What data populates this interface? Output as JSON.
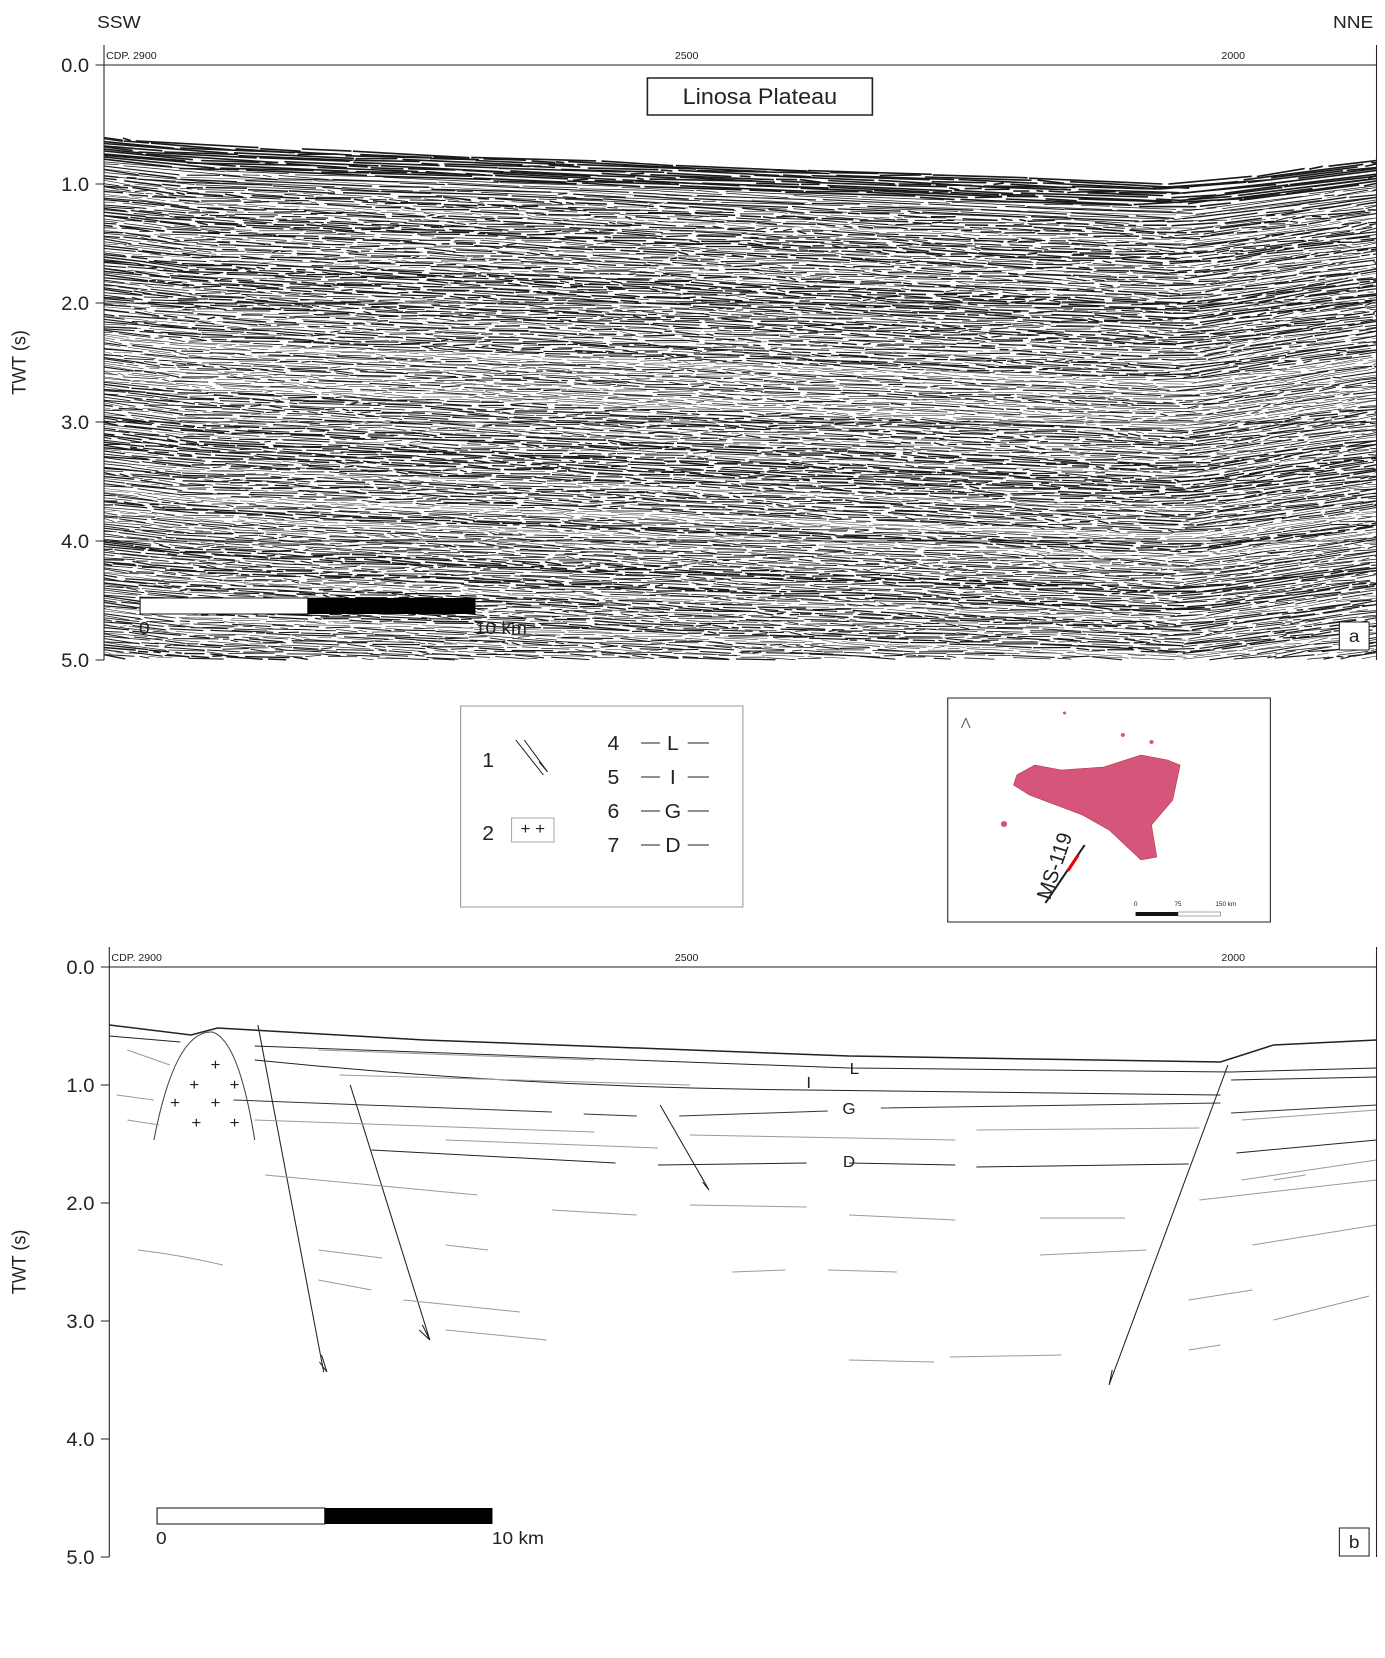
{
  "direction": {
    "left": "SSW",
    "right": "NNE"
  },
  "panels": [
    {
      "label": "a",
      "title": "Linosa Plateau",
      "axis_label": "TWT (s)",
      "cdp": [
        "CDP. 2900",
        "2500",
        "2000"
      ],
      "yticks": [
        {
          "value": 0,
          "label": "0.0"
        },
        {
          "value": 1,
          "label": "1.0"
        },
        {
          "value": 2,
          "label": "2.0"
        },
        {
          "value": 3,
          "label": "3.0"
        },
        {
          "value": 4,
          "label": "4.0"
        },
        {
          "value": 5,
          "label": "5.0"
        }
      ],
      "scale": [
        "0",
        "10 km"
      ]
    },
    {
      "label": "b",
      "axis_label": "TWT (s)",
      "cdp": [
        "CDP. 2900",
        "2500",
        "2000"
      ],
      "yticks": [
        {
          "value": 0,
          "label": "0.0"
        },
        {
          "value": 1,
          "label": "1.0"
        },
        {
          "value": 2,
          "label": "2.0"
        },
        {
          "value": 3,
          "label": "3.0"
        },
        {
          "value": 4,
          "label": "4.0"
        },
        {
          "value": 5,
          "label": "5.0"
        }
      ],
      "scale": [
        "0",
        "10 km"
      ],
      "horizons": [
        "L",
        "I",
        "G",
        "D"
      ]
    }
  ],
  "legend": [
    {
      "number": "1"
    },
    {
      "number": "2"
    },
    {
      "number": "4",
      "symbol": "L"
    },
    {
      "number": "5",
      "symbol": "I"
    },
    {
      "number": "6",
      "symbol": "G"
    },
    {
      "number": "7",
      "symbol": "D"
    }
  ],
  "map": {
    "line_label": "MS-119",
    "scale": [
      "0",
      "75",
      "150 km"
    ]
  }
}
